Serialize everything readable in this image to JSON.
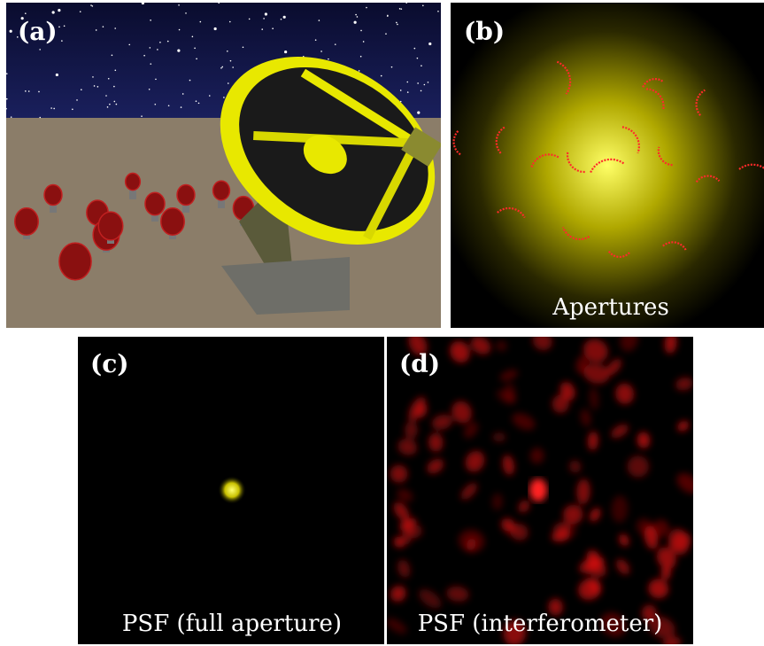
{
  "panels": [
    {
      "label": "(a)"
    },
    {
      "label": "(b)",
      "caption": "Apertures"
    },
    {
      "label": "(c)",
      "caption": "PSF (full aperture)"
    },
    {
      "label": "(d)",
      "caption": "PSF (interferometer)"
    }
  ]
}
